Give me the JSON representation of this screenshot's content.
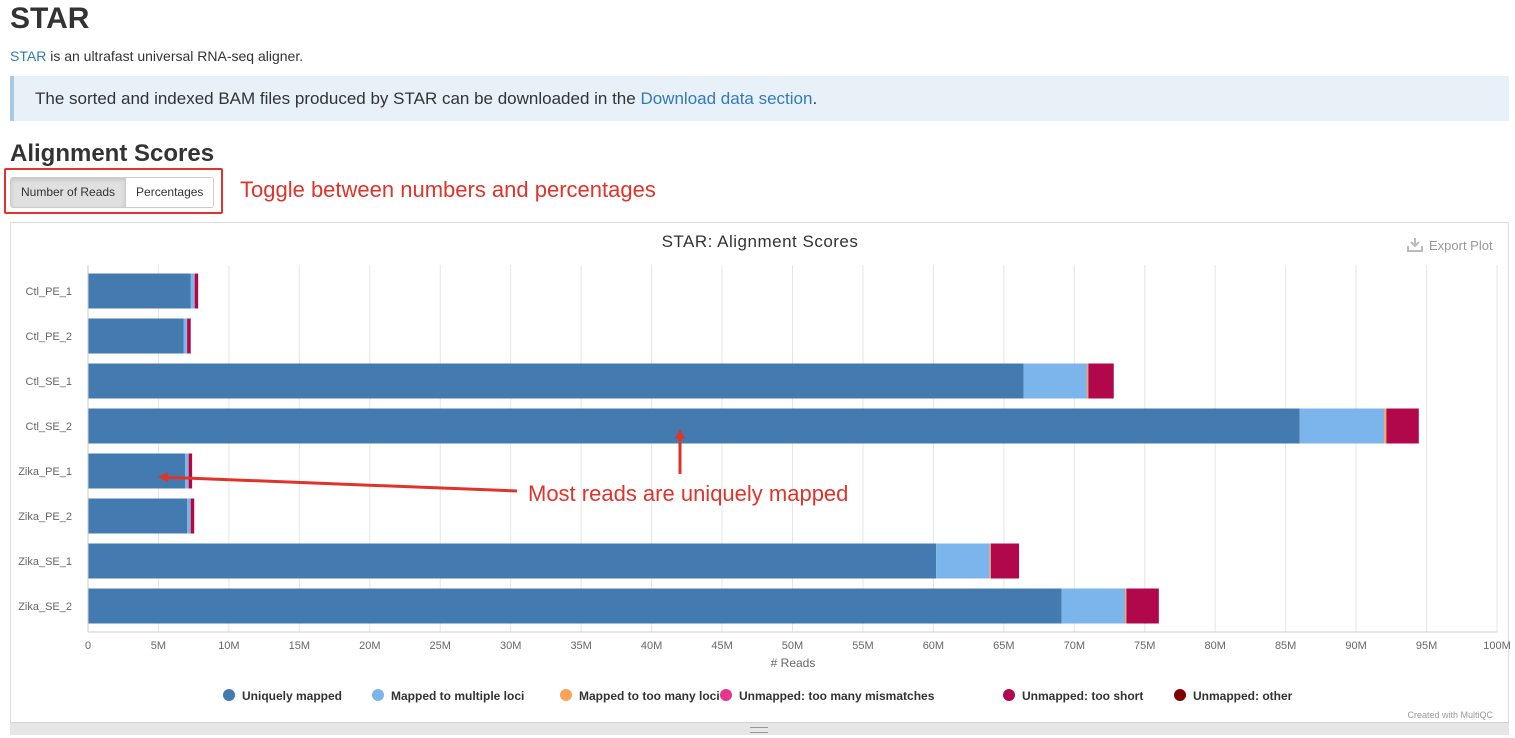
{
  "page": {
    "title": "STAR",
    "intro_link": "STAR",
    "intro_text": " is an ultrafast universal RNA-seq aligner.",
    "callout_text": "The sorted and indexed BAM files produced by STAR can be downloaded in the ",
    "callout_link": "Download data section",
    "callout_end": ".",
    "section_title": "Alignment Scores"
  },
  "toggle": {
    "numbers_label": "Number of Reads",
    "percent_label": "Percentages"
  },
  "annotations": {
    "toggle_note": "Toggle between numbers and percentages",
    "reads_note": "Most reads are uniquely mapped"
  },
  "plot": {
    "export_label": "Export Plot",
    "credit": "Created with MultiQC"
  },
  "chart_data": {
    "type": "bar",
    "orientation": "horizontal",
    "stacked": true,
    "title": "STAR: Alignment Scores",
    "xlabel": "# Reads",
    "ylabel": "",
    "xlim": [
      0,
      100000000
    ],
    "xticks": [
      "0",
      "5M",
      "10M",
      "15M",
      "20M",
      "25M",
      "30M",
      "35M",
      "40M",
      "45M",
      "50M",
      "55M",
      "60M",
      "65M",
      "70M",
      "75M",
      "80M",
      "85M",
      "90M",
      "95M",
      "100M"
    ],
    "grid": true,
    "legend_position": "bottom",
    "categories": [
      "Ctl_PE_1",
      "Ctl_PE_2",
      "Ctl_SE_1",
      "Ctl_SE_2",
      "Zika_PE_1",
      "Zika_PE_2",
      "Zika_SE_1",
      "Zika_SE_2"
    ],
    "series": [
      {
        "name": "Uniquely mapped",
        "color": "#437bb1",
        "values": [
          7300000,
          6800000,
          66400000,
          86000000,
          6900000,
          7050000,
          60200000,
          69100000
        ]
      },
      {
        "name": "Mapped to multiple loci",
        "color": "#7cb5ec",
        "values": [
          250000,
          220000,
          4500000,
          6000000,
          220000,
          220000,
          3800000,
          4500000
        ]
      },
      {
        "name": "Mapped to too many loci",
        "color": "#f7a35c",
        "values": [
          20000,
          20000,
          100000,
          150000,
          20000,
          20000,
          80000,
          100000
        ]
      },
      {
        "name": "Unmapped: too many mismatches",
        "color": "#e63491",
        "values": [
          0,
          0,
          0,
          0,
          0,
          0,
          0,
          0
        ]
      },
      {
        "name": "Unmapped: too short",
        "color": "#b1084c",
        "values": [
          250000,
          250000,
          1800000,
          2300000,
          250000,
          250000,
          2000000,
          2300000
        ]
      },
      {
        "name": "Unmapped: other",
        "color": "#7f0000",
        "values": [
          0,
          0,
          0,
          0,
          0,
          0,
          0,
          0
        ]
      }
    ]
  }
}
